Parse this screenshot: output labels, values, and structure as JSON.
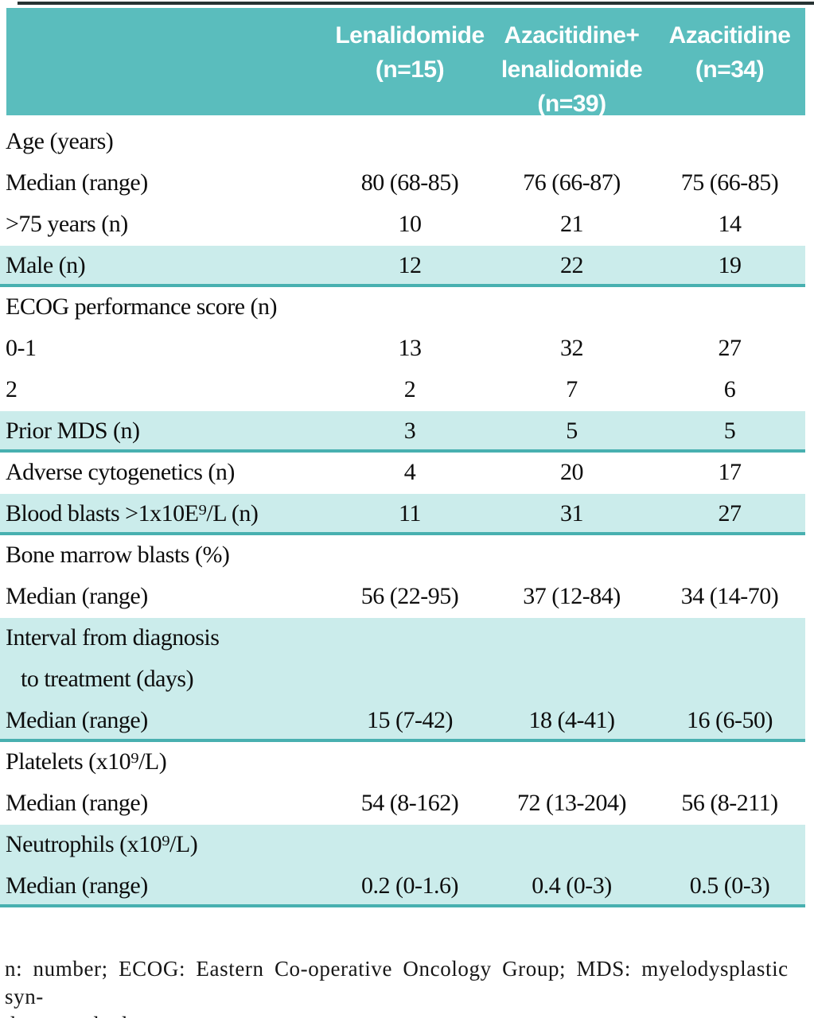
{
  "table": {
    "columns": [
      {
        "header": ""
      },
      {
        "header": "Lenalidomide\n(n=15)"
      },
      {
        "header": "Azacitidine+\nlenalidomide\n(n=39)"
      },
      {
        "header": "Azacitidine\n(n=34)"
      }
    ],
    "rows": [
      {
        "label": "Age (years)",
        "values": [
          "",
          "",
          ""
        ],
        "highlight": false,
        "rule_after": false,
        "indent": false
      },
      {
        "label": "Median (range)",
        "values": [
          "80 (68-85)",
          "76 (66-87)",
          "75 (66-85)"
        ],
        "highlight": false,
        "rule_after": false,
        "indent": false
      },
      {
        "label": ">75 years (n)",
        "values": [
          "10",
          "21",
          "14"
        ],
        "highlight": false,
        "rule_after": false,
        "indent": false
      },
      {
        "label": "Male (n)",
        "values": [
          "12",
          "22",
          "19"
        ],
        "highlight": true,
        "rule_after": true,
        "indent": false
      },
      {
        "label": "ECOG performance score (n)",
        "values": [
          "",
          "",
          ""
        ],
        "highlight": false,
        "rule_after": false,
        "indent": false
      },
      {
        "label": "0-1",
        "values": [
          "13",
          "32",
          "27"
        ],
        "highlight": false,
        "rule_after": false,
        "indent": false
      },
      {
        "label": "2",
        "values": [
          "2",
          "7",
          "6"
        ],
        "highlight": false,
        "rule_after": false,
        "indent": false
      },
      {
        "label": "Prior MDS (n)",
        "values": [
          "3",
          "5",
          "5"
        ],
        "highlight": true,
        "rule_after": true,
        "indent": false
      },
      {
        "label": "Adverse cytogenetics (n)",
        "values": [
          "4",
          "20",
          "17"
        ],
        "highlight": false,
        "rule_after": false,
        "indent": false
      },
      {
        "label": "Blood blasts >1x10E⁹/L (n)",
        "values": [
          "11",
          "31",
          "27"
        ],
        "highlight": true,
        "rule_after": true,
        "indent": false
      },
      {
        "label": "Bone marrow blasts (%)",
        "values": [
          "",
          "",
          ""
        ],
        "highlight": false,
        "rule_after": false,
        "indent": false
      },
      {
        "label": "Median (range)",
        "values": [
          "56 (22-95)",
          "37 (12-84)",
          "34 (14-70)"
        ],
        "highlight": false,
        "rule_after": false,
        "indent": false
      },
      {
        "label": "Interval from diagnosis",
        "values": [
          "",
          "",
          ""
        ],
        "highlight": true,
        "rule_after": false,
        "indent": false
      },
      {
        "label": "to treatment (days)",
        "values": [
          "",
          "",
          ""
        ],
        "highlight": true,
        "rule_after": false,
        "indent": true
      },
      {
        "label": "Median (range)",
        "values": [
          "15 (7-42)",
          "18 (4-41)",
          "16 (6-50)"
        ],
        "highlight": true,
        "rule_after": true,
        "indent": false
      },
      {
        "label": "Platelets (x10⁹/L)",
        "values": [
          "",
          "",
          ""
        ],
        "highlight": false,
        "rule_after": false,
        "indent": false
      },
      {
        "label": "Median (range)",
        "values": [
          "54 (8-162)",
          "72 (13-204)",
          "56 (8-211)"
        ],
        "highlight": false,
        "rule_after": false,
        "indent": false
      },
      {
        "label": "Neutrophils (x10⁹/L)",
        "values": [
          "",
          "",
          ""
        ],
        "highlight": true,
        "rule_after": false,
        "indent": false
      },
      {
        "label": "Median (range)",
        "values": [
          "0.2 (0-1.6)",
          "0.4 (0-3)",
          "0.5 (0-3)"
        ],
        "highlight": true,
        "rule_after": true,
        "indent": false
      }
    ]
  },
  "footnote": {
    "text": "n: number; ECOG: Eastern Co-operative Oncology Group; MDS: myelodysplastic syn-\ndromes; d: days."
  },
  "colors": {
    "header_bg": "#5abdbd",
    "row_highlight": "#cbeceb",
    "rule": "#48b0b0",
    "top_rule": "#263232",
    "header_text": "#ffffff",
    "body_text": "#0d0d0d"
  }
}
